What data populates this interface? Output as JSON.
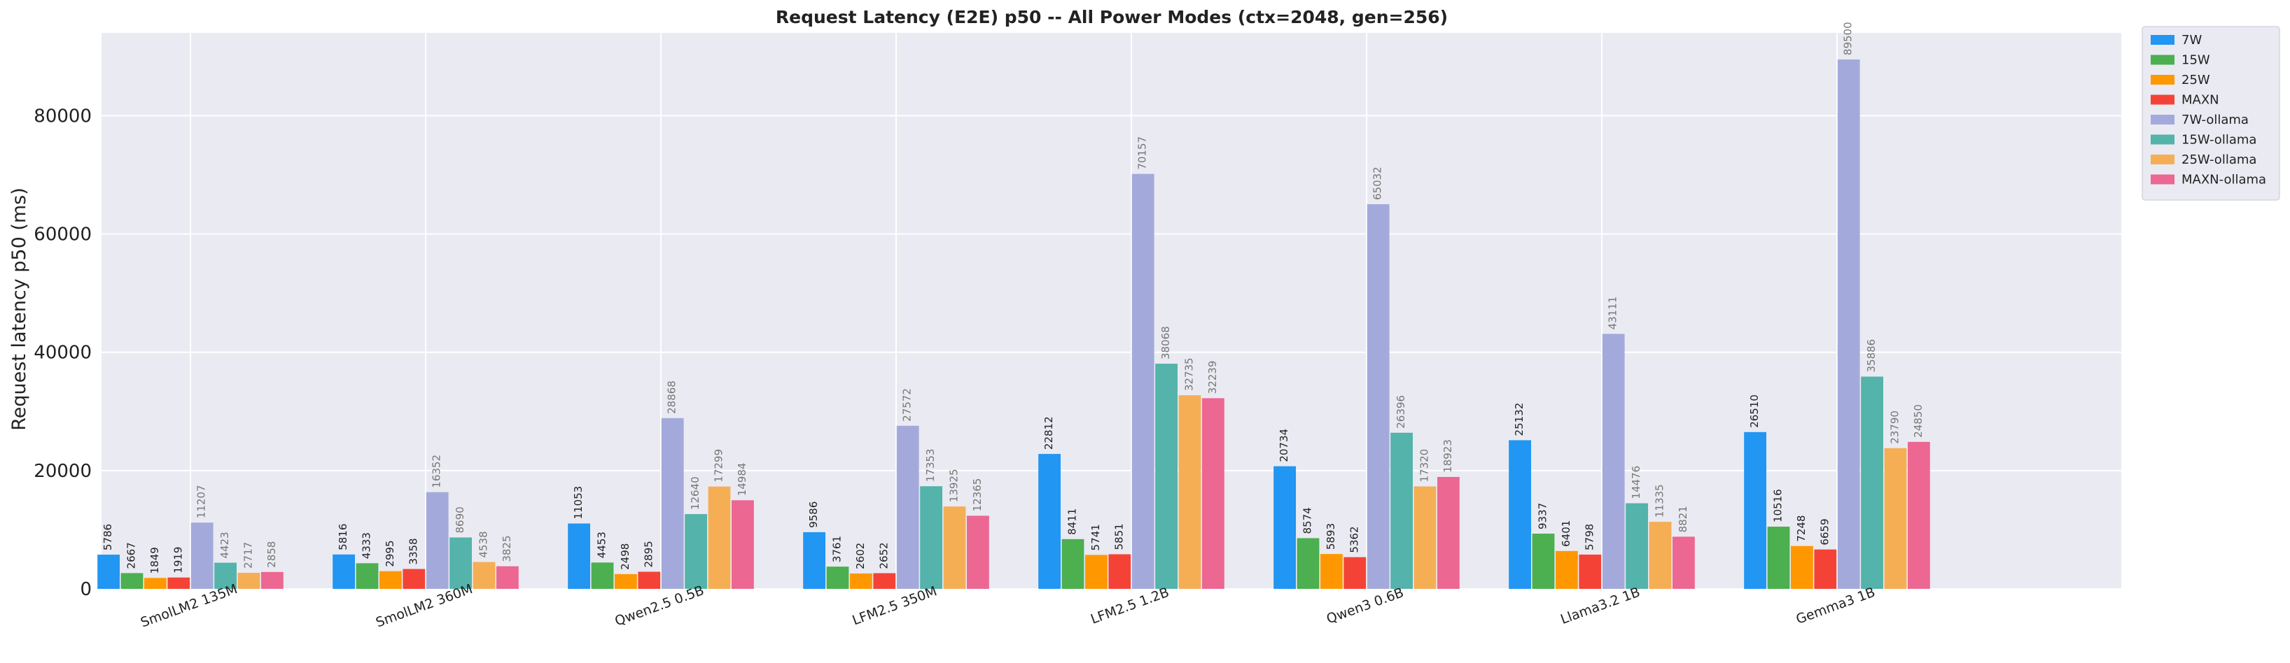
{
  "chart_data": {
    "type": "bar",
    "title": "Request Latency (E2E) p50 -- All Power Modes (ctx=2048, gen=256)",
    "xlabel": "",
    "ylabel": "Request latency p50 (ms)",
    "ylim": [
      0,
      94000
    ],
    "yticks": [
      0,
      20000,
      40000,
      60000,
      80000
    ],
    "grid": true,
    "legend_position": "outside-top-right",
    "categories": [
      "SmolLM2 135M",
      "SmolLM2 360M",
      "Qwen2.5 0.5B",
      "LFM2.5 350M",
      "LFM2.5 1.2B",
      "Qwen3 0.6B",
      "Llama3.2 1B",
      "Gemma3 1B"
    ],
    "series": [
      {
        "name": "7W",
        "color": "#2196F3",
        "label_color": "#222222",
        "values": [
          5786,
          5816,
          11053,
          9586,
          22812,
          20734,
          25132,
          26510
        ]
      },
      {
        "name": "15W",
        "color": "#4CAF50",
        "label_color": "#222222",
        "values": [
          2667,
          4333,
          4453,
          3761,
          8411,
          8574,
          9337,
          10516
        ]
      },
      {
        "name": "25W",
        "color": "#FF9800",
        "label_color": "#222222",
        "values": [
          1849,
          2995,
          2498,
          2602,
          5741,
          5893,
          6401,
          7248
        ]
      },
      {
        "name": "MAXN",
        "color": "#F44336",
        "label_color": "#222222",
        "values": [
          1919,
          3358,
          2895,
          2652,
          5851,
          5362,
          5798,
          6659
        ]
      },
      {
        "name": "7W-ollama",
        "color": "#A3AADB",
        "label_color": "#777777",
        "values": [
          11207,
          16352,
          28868,
          27572,
          70157,
          65032,
          43111,
          89500
        ]
      },
      {
        "name": "15W-ollama",
        "color": "#54B3AA",
        "label_color": "#777777",
        "values": [
          4423,
          8690,
          12640,
          17353,
          38068,
          26396,
          14476,
          35886
        ]
      },
      {
        "name": "25W-ollama",
        "color": "#F6AE55",
        "label_color": "#777777",
        "values": [
          2717,
          4538,
          17299,
          13925,
          32735,
          17320,
          11335,
          23790
        ]
      },
      {
        "name": "MAXN-ollama",
        "color": "#EC6792",
        "label_color": "#777777",
        "values": [
          2858,
          3825,
          14984,
          12365,
          32239,
          18923,
          8821,
          24850
        ]
      }
    ],
    "colors": {
      "plot_background": "#EAEAF2",
      "grid": "#FFFFFF",
      "text": "#222222"
    }
  }
}
